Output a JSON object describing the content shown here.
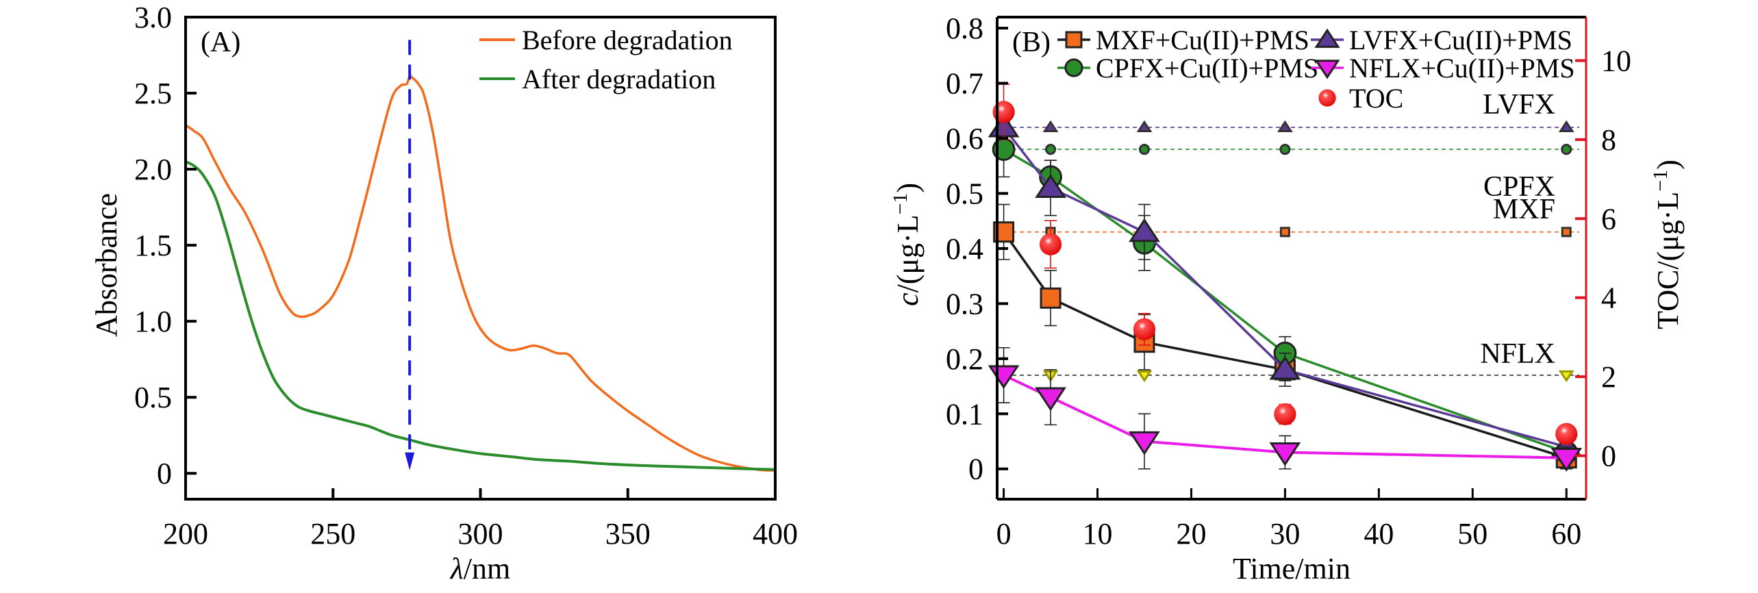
{
  "chart_data": [
    {
      "id": "A",
      "type": "line",
      "panel_label": "(A)",
      "title": "",
      "xlabel_symbol": "λ",
      "xlabel_unit": "/nm",
      "ylabel": "Absorbance",
      "xlim": [
        200,
        400
      ],
      "ylim": [
        -0.17,
        3.0
      ],
      "xticks": [
        200,
        250,
        300,
        350,
        400
      ],
      "yticks": [
        0,
        0.5,
        1.0,
        1.5,
        2.0,
        2.5,
        3.0
      ],
      "ytick_labels": [
        "0",
        "0.5",
        "1.0",
        "1.5",
        "2.0",
        "2.5",
        "3.0"
      ],
      "grid": false,
      "legend_position": "top-right",
      "series": [
        {
          "name": "Before degradation",
          "color": "#f26b1d",
          "x": [
            200,
            203,
            206,
            210,
            215,
            220,
            225,
            228,
            232,
            236,
            239,
            242,
            245,
            250,
            255,
            258,
            262,
            266,
            270,
            273,
            275,
            276,
            277,
            279,
            281,
            284,
            287,
            290,
            294,
            298,
            302,
            306,
            310,
            314,
            318,
            322,
            326,
            330,
            334,
            338,
            344,
            350,
            356,
            362,
            368,
            374,
            380,
            386,
            392,
            396,
            400
          ],
          "y": [
            2.29,
            2.25,
            2.2,
            2.05,
            1.87,
            1.72,
            1.52,
            1.38,
            1.18,
            1.06,
            1.03,
            1.04,
            1.07,
            1.17,
            1.38,
            1.58,
            1.88,
            2.19,
            2.47,
            2.55,
            2.56,
            2.61,
            2.6,
            2.56,
            2.48,
            2.23,
            1.88,
            1.52,
            1.23,
            1.02,
            0.9,
            0.84,
            0.81,
            0.82,
            0.84,
            0.82,
            0.79,
            0.78,
            0.69,
            0.6,
            0.5,
            0.41,
            0.33,
            0.25,
            0.18,
            0.12,
            0.08,
            0.05,
            0.03,
            0.02,
            0.02
          ]
        },
        {
          "name": "After degradation",
          "color": "#2a8c2a",
          "x": [
            200,
            203,
            206,
            210,
            214,
            218,
            222,
            226,
            230,
            234,
            238,
            242,
            246,
            250,
            254,
            258,
            262,
            266,
            270,
            276,
            282,
            290,
            300,
            310,
            320,
            330,
            340,
            350,
            360,
            370,
            380,
            390,
            400
          ],
          "y": [
            2.05,
            2.02,
            1.96,
            1.82,
            1.58,
            1.3,
            1.03,
            0.8,
            0.62,
            0.51,
            0.44,
            0.41,
            0.39,
            0.37,
            0.35,
            0.33,
            0.31,
            0.28,
            0.25,
            0.22,
            0.19,
            0.16,
            0.13,
            0.11,
            0.09,
            0.08,
            0.065,
            0.055,
            0.048,
            0.042,
            0.036,
            0.03,
            0.025
          ]
        }
      ],
      "annotations": [
        {
          "type": "dashed-arrow",
          "x": 276,
          "y_from": 2.85,
          "y_to": 0.02,
          "color": "#1a1adb",
          "direction": "down"
        }
      ]
    },
    {
      "id": "B",
      "type": "line",
      "panel_label": "(B)",
      "title": "",
      "xlabel": "Time/min",
      "ylabel_symbol": "c",
      "ylabel_rest": "/(μg·L",
      "ylabel_sup": "−1",
      "ylabel_close": ")",
      "y2label_main": "TOC/(μg·L",
      "y2label_sup": "−1",
      "y2label_close": ")",
      "xlim": [
        -0.7,
        62.1
      ],
      "ylim": [
        -0.055,
        0.82
      ],
      "y2lim": [
        -1.1,
        11.1
      ],
      "xticks": [
        0,
        10,
        20,
        30,
        40,
        50,
        60
      ],
      "yticks": [
        0,
        0.1,
        0.2,
        0.3,
        0.4,
        0.5,
        0.6,
        0.7,
        0.8
      ],
      "ytick_labels": [
        "0",
        "0.1",
        "0.2",
        "0.3",
        "0.4",
        "0.5",
        "0.6",
        "0.7",
        "0.8"
      ],
      "y2ticks": [
        0,
        2,
        4,
        6,
        8,
        10
      ],
      "right_axis_color": "#e0141e",
      "grid": false,
      "legend_position": "top",
      "x": [
        0,
        5,
        15,
        30,
        60
      ],
      "series": [
        {
          "name": "MXF+Cu(II)+PMS",
          "marker": "square",
          "fill": "#f26b1d",
          "line": "#1a1a1a",
          "values": [
            0.43,
            0.31,
            0.23,
            0.18,
            0.02
          ],
          "err": [
            0.05,
            0.05,
            0.05,
            0.02,
            0.01
          ]
        },
        {
          "name": "CPFX+Cu(II)+PMS",
          "marker": "circle",
          "fill": "#2a8c2a",
          "line": "#2a8c2a",
          "values": [
            0.58,
            0.53,
            0.41,
            0.21,
            0.03
          ],
          "err": [
            0.05,
            0.03,
            0.05,
            0.03,
            0.01
          ]
        },
        {
          "name": "LVFX+Cu(II)+PMS",
          "marker": "triangle-up",
          "fill": "#5b3a96",
          "line": "#5b3a96",
          "values": [
            0.62,
            0.51,
            0.43,
            0.18,
            0.04
          ],
          "err": [
            0.01,
            0.05,
            0.05,
            0.03,
            0.01
          ]
        },
        {
          "name": "NFLX+Cu(II)+PMS",
          "marker": "triangle-down",
          "fill": "#e81ee8",
          "line": "#e81ee8",
          "values": [
            0.17,
            0.13,
            0.05,
            0.03,
            0.02
          ],
          "err": [
            0.05,
            0.05,
            0.05,
            0.03,
            0.02
          ]
        },
        {
          "name": "TOC",
          "marker": "sphere",
          "fill": "#ee1111",
          "line": "none",
          "axis": "right",
          "values": [
            8.7,
            5.35,
            3.2,
            1.05,
            0.55
          ],
          "err": [
            0.7,
            0.6,
            0.4,
            0.25,
            0.15
          ]
        }
      ],
      "reference_lines": [
        {
          "label": "LVFX",
          "value": 0.62,
          "marker": "triangle-up",
          "color": "#5b3a96"
        },
        {
          "label": "CPFX",
          "value": 0.58,
          "marker": "circle",
          "color": "#2a8c2a"
        },
        {
          "label": "MXF",
          "value": 0.43,
          "marker": "square",
          "color": "#f26b1d"
        },
        {
          "label": "NFLX",
          "value": 0.17,
          "marker": "triangle-down",
          "color": "#f2ea1a"
        }
      ]
    }
  ]
}
